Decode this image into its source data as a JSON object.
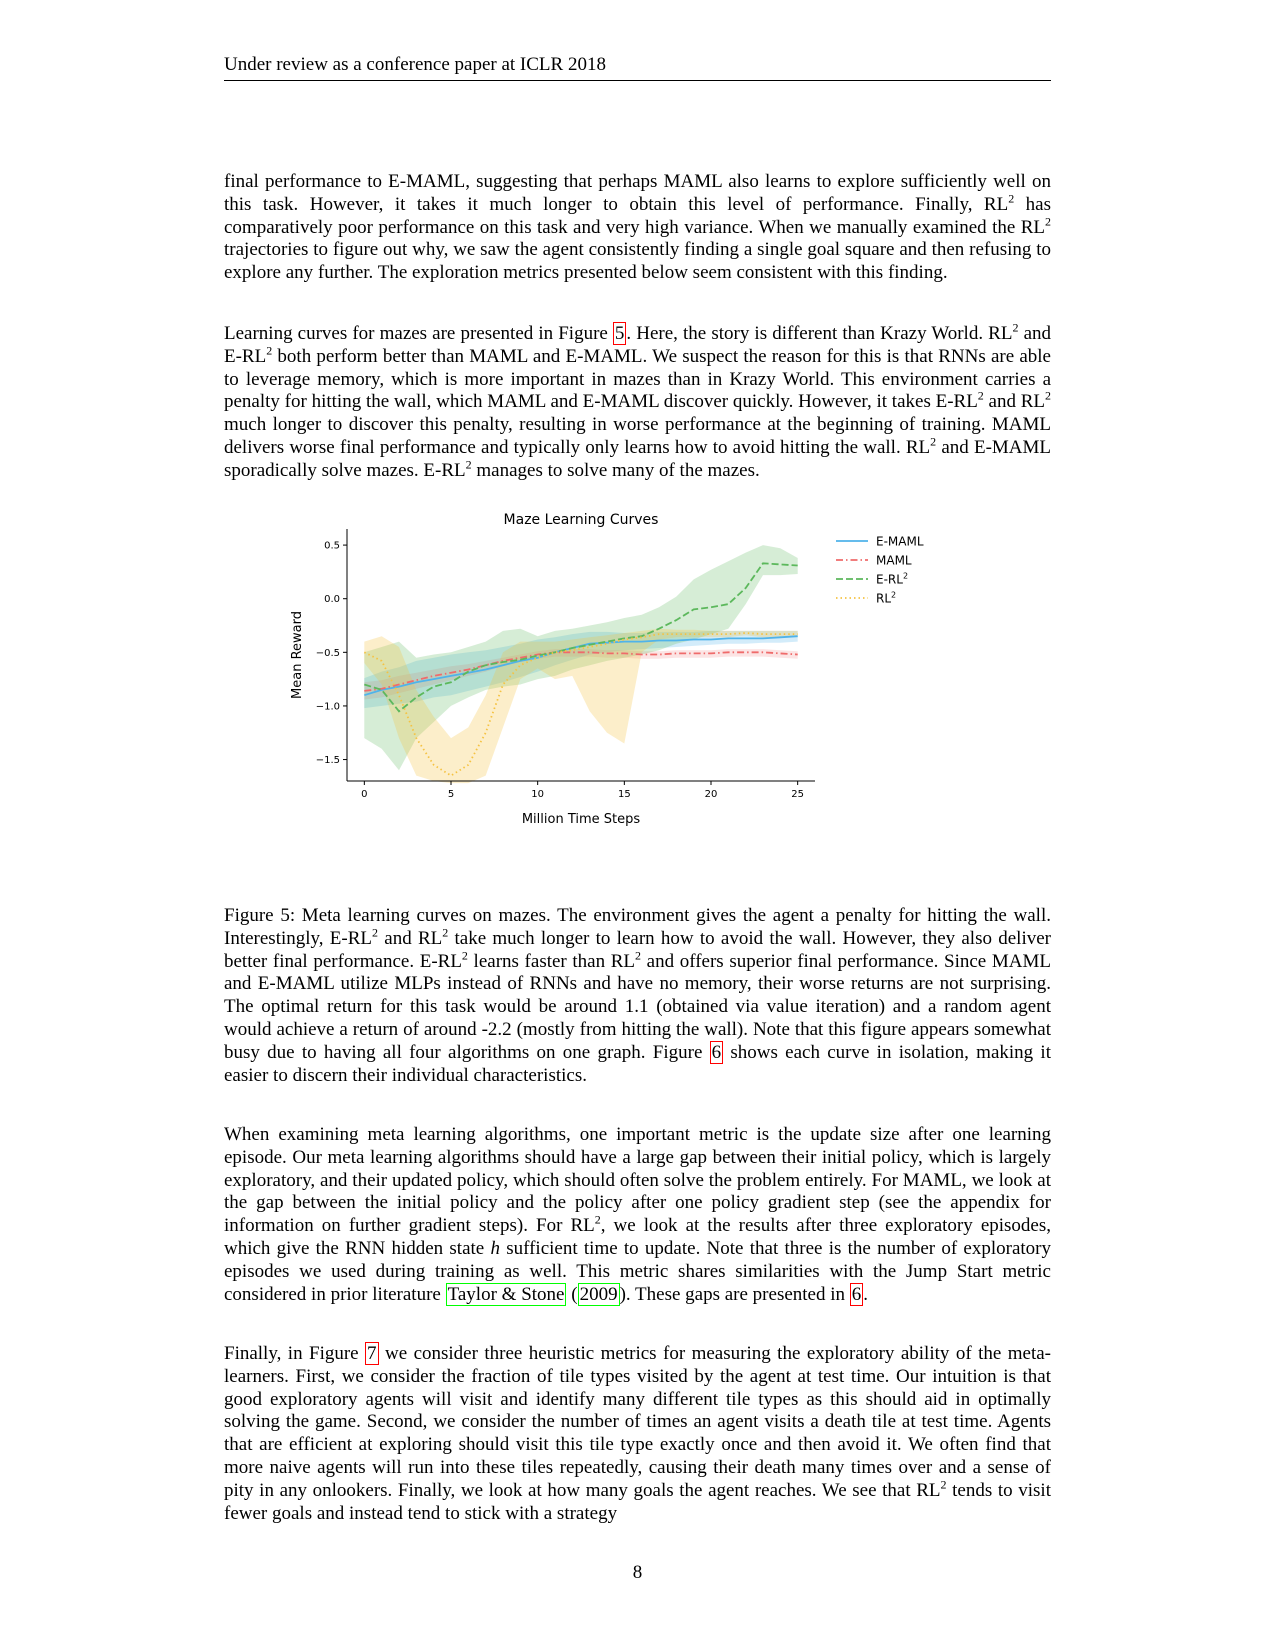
{
  "header": {
    "text": "Under review as a conference paper at ICLR 2018"
  },
  "paragraphs": {
    "p1": [
      {
        "t": "final performance to E-MAML, suggesting that perhaps MAML also learns to explore sufficiently well on this task. However, it takes it much longer to obtain this level of performance. Finally, RL"
      },
      {
        "t": "2",
        "sup": true
      },
      {
        "t": " has comparatively poor performance on this task and very high variance. When we manually examined the RL"
      },
      {
        "t": "2",
        "sup": true
      },
      {
        "t": " trajectories to figure out why, we saw the agent consistently finding a single goal square and then refusing to explore any further. The exploration metrics presented below seem consistent with this finding."
      }
    ],
    "p2": [
      {
        "t": "Learning curves for mazes are presented in Figure "
      },
      {
        "t": "5",
        "ref": "red"
      },
      {
        "t": ". Here, the story is different than Krazy World. RL"
      },
      {
        "t": "2",
        "sup": true
      },
      {
        "t": " and E-RL"
      },
      {
        "t": "2",
        "sup": true
      },
      {
        "t": " both perform better than MAML and E-MAML. We suspect the reason for this is that RNNs are able to leverage memory, which is more important in mazes than in Krazy World. This environment carries a penalty for hitting the wall, which MAML and E-MAML discover quickly. However, it takes E-RL"
      },
      {
        "t": "2",
        "sup": true
      },
      {
        "t": " and RL"
      },
      {
        "t": "2",
        "sup": true
      },
      {
        "t": " much longer to discover this penalty, resulting in worse performance at the beginning of training. MAML delivers worse final performance and typically only learns how to avoid hitting the wall. RL"
      },
      {
        "t": "2",
        "sup": true
      },
      {
        "t": " and E-MAML sporadically solve mazes. E-RL"
      },
      {
        "t": "2",
        "sup": true
      },
      {
        "t": " manages to solve many of the mazes."
      }
    ],
    "caption": [
      {
        "t": "Figure 5: Meta learning curves on mazes. The environment gives the agent a penalty for hitting the wall. Interestingly, E-RL"
      },
      {
        "t": "2",
        "sup": true
      },
      {
        "t": " and RL"
      },
      {
        "t": "2",
        "sup": true
      },
      {
        "t": " take much longer to learn how to avoid the wall. However, they also deliver better final performance. E-RL"
      },
      {
        "t": "2",
        "sup": true
      },
      {
        "t": " learns faster than RL"
      },
      {
        "t": "2",
        "sup": true
      },
      {
        "t": " and offers superior final performance. Since MAML and E-MAML utilize MLPs instead of RNNs and have no memory, their worse returns are not surprising. The optimal return for this task would be around 1.1 (obtained via value iteration) and a random agent would achieve a return of around -2.2 (mostly from hitting the wall). Note that this figure appears somewhat busy due to having all four algorithms on one graph. Figure "
      },
      {
        "t": "6",
        "ref": "red"
      },
      {
        "t": " shows each curve in isolation, making it easier to discern their individual characteristics."
      }
    ],
    "p3": [
      {
        "t": "When examining meta learning algorithms, one important metric is the update size after one learning episode. Our meta learning algorithms should have a large gap between their initial policy, which is largely exploratory, and their updated policy, which should often solve the problem entirely. For MAML, we look at the gap between the initial policy and the policy after one policy gradient step (see the appendix for information on further gradient steps). For RL"
      },
      {
        "t": "2",
        "sup": true
      },
      {
        "t": ", we look at the results after three exploratory episodes, which give the RNN hidden state "
      },
      {
        "t": "h",
        "italic": true
      },
      {
        "t": " sufficient time to update. Note that three is the number of exploratory episodes we used during training as well. This metric shares similarities with the Jump Start metric considered in prior literature "
      },
      {
        "t": "Taylor & Stone",
        "ref": "green"
      },
      {
        "t": " ("
      },
      {
        "t": "2009",
        "ref": "green"
      },
      {
        "t": "). These gaps are presented in "
      },
      {
        "t": "6",
        "ref": "red"
      },
      {
        "t": "."
      }
    ],
    "p4": [
      {
        "t": "Finally, in Figure "
      },
      {
        "t": "7",
        "ref": "red"
      },
      {
        "t": " we consider three heuristic metrics for measuring the exploratory ability of the meta-learners. First, we consider the fraction of tile types visited by the agent at test time. Our intuition is that good exploratory agents will visit and identify many different tile types as this should aid in optimally solving the game. Second, we consider the number of times an agent visits a death tile at test time. Agents that are efficient at exploring should visit this tile type exactly once and then avoid it. We often find that more naive agents will run into these tiles repeatedly, causing their death many times over and a sense of pity in any onlookers. Finally, we look at how many goals the agent reaches. We see that RL"
      },
      {
        "t": "2",
        "sup": true
      },
      {
        "t": " tends to visit fewer goals and instead tend to stick with a strategy"
      }
    ]
  },
  "page_number": "8",
  "chart_data": {
    "type": "line",
    "title": "Maze Learning Curves",
    "xlabel": "Million Time Steps",
    "ylabel": "Mean Reward",
    "xlim": [
      -1,
      26
    ],
    "ylim": [
      -1.7,
      0.65
    ],
    "xticks": [
      0,
      5,
      10,
      15,
      20,
      25
    ],
    "yticks": [
      0.5,
      0.0,
      -0.5,
      -1.0,
      -1.5
    ],
    "ytick_labels": [
      "0.5",
      "0.0",
      "−0.5",
      "−1.0",
      "−1.5"
    ],
    "legend_position": "right",
    "series": [
      {
        "name": "E-MAML",
        "legend_label": "E-MAML",
        "color": "#4fb3ea",
        "dash": "solid",
        "band_opacity": 0.25,
        "x": [
          0,
          1,
          2,
          3,
          4,
          5,
          6,
          7,
          8,
          9,
          10,
          11,
          12,
          13,
          14,
          15,
          16,
          17,
          18,
          19,
          20,
          21,
          22,
          23,
          24,
          25
        ],
        "y": [
          -0.9,
          -0.85,
          -0.82,
          -0.78,
          -0.75,
          -0.72,
          -0.69,
          -0.66,
          -0.62,
          -0.58,
          -0.55,
          -0.5,
          -0.46,
          -0.42,
          -0.41,
          -0.4,
          -0.4,
          -0.39,
          -0.39,
          -0.38,
          -0.38,
          -0.37,
          -0.37,
          -0.37,
          -0.36,
          -0.35
        ],
        "upper": [
          -0.74,
          -0.68,
          -0.64,
          -0.58,
          -0.55,
          -0.52,
          -0.5,
          -0.48,
          -0.45,
          -0.42,
          -0.38,
          -0.36,
          -0.33,
          -0.31,
          -0.31,
          -0.32,
          -0.32,
          -0.31,
          -0.31,
          -0.31,
          -0.3,
          -0.3,
          -0.3,
          -0.3,
          -0.3,
          -0.3
        ],
        "lower": [
          -1.02,
          -1.0,
          -0.98,
          -0.96,
          -0.92,
          -0.9,
          -0.86,
          -0.82,
          -0.78,
          -0.73,
          -0.68,
          -0.62,
          -0.57,
          -0.52,
          -0.5,
          -0.48,
          -0.47,
          -0.46,
          -0.45,
          -0.44,
          -0.43,
          -0.42,
          -0.42,
          -0.41,
          -0.41,
          -0.4
        ]
      },
      {
        "name": "MAML",
        "legend_label": "MAML",
        "color": "#ef6b6b",
        "dash": "dashdot",
        "band_opacity": 0.18,
        "x": [
          0,
          1,
          2,
          3,
          4,
          5,
          6,
          7,
          8,
          9,
          10,
          11,
          12,
          13,
          14,
          15,
          16,
          17,
          18,
          19,
          20,
          21,
          22,
          23,
          24,
          25
        ],
        "y": [
          -0.86,
          -0.84,
          -0.8,
          -0.76,
          -0.72,
          -0.69,
          -0.66,
          -0.62,
          -0.58,
          -0.55,
          -0.52,
          -0.5,
          -0.5,
          -0.5,
          -0.51,
          -0.51,
          -0.52,
          -0.52,
          -0.51,
          -0.51,
          -0.51,
          -0.5,
          -0.5,
          -0.5,
          -0.51,
          -0.52
        ],
        "upper": [
          -0.78,
          -0.76,
          -0.72,
          -0.69,
          -0.66,
          -0.63,
          -0.61,
          -0.58,
          -0.55,
          -0.52,
          -0.49,
          -0.47,
          -0.47,
          -0.47,
          -0.48,
          -0.48,
          -0.49,
          -0.49,
          -0.48,
          -0.48,
          -0.48,
          -0.47,
          -0.47,
          -0.47,
          -0.48,
          -0.49
        ],
        "lower": [
          -0.94,
          -0.92,
          -0.88,
          -0.84,
          -0.8,
          -0.76,
          -0.72,
          -0.68,
          -0.63,
          -0.59,
          -0.56,
          -0.54,
          -0.54,
          -0.54,
          -0.55,
          -0.55,
          -0.56,
          -0.56,
          -0.55,
          -0.55,
          -0.55,
          -0.54,
          -0.54,
          -0.54,
          -0.55,
          -0.56
        ]
      },
      {
        "name": "E-RL2",
        "legend_label": "E-RL",
        "legend_sup": "2",
        "color": "#5cb85c",
        "dash": "dashed",
        "band_opacity": 0.25,
        "x": [
          0,
          1,
          2,
          3,
          4,
          5,
          6,
          7,
          8,
          9,
          10,
          11,
          12,
          13,
          14,
          15,
          16,
          17,
          18,
          19,
          20,
          21,
          22,
          23,
          24,
          25
        ],
        "y": [
          -0.8,
          -0.85,
          -1.05,
          -0.92,
          -0.82,
          -0.78,
          -0.68,
          -0.62,
          -0.59,
          -0.57,
          -0.53,
          -0.5,
          -0.46,
          -0.43,
          -0.4,
          -0.37,
          -0.35,
          -0.28,
          -0.2,
          -0.1,
          -0.08,
          -0.05,
          0.1,
          0.33,
          0.32,
          0.31
        ],
        "upper": [
          -0.5,
          -0.45,
          -0.4,
          -0.55,
          -0.52,
          -0.5,
          -0.45,
          -0.4,
          -0.3,
          -0.28,
          -0.35,
          -0.3,
          -0.28,
          -0.25,
          -0.22,
          -0.18,
          -0.15,
          -0.08,
          0.02,
          0.18,
          0.27,
          0.35,
          0.43,
          0.5,
          0.47,
          0.38
        ],
        "lower": [
          -1.3,
          -1.4,
          -1.6,
          -1.3,
          -1.15,
          -1.0,
          -0.92,
          -0.85,
          -0.82,
          -0.8,
          -0.75,
          -0.72,
          -0.66,
          -0.62,
          -0.58,
          -0.55,
          -0.52,
          -0.48,
          -0.42,
          -0.38,
          -0.33,
          -0.28,
          -0.05,
          0.22,
          0.22,
          0.23
        ]
      },
      {
        "name": "RL2",
        "legend_label": "RL",
        "legend_sup": "2",
        "color": "#f5c242",
        "dash": "dotted",
        "band_opacity": 0.28,
        "x": [
          0,
          1,
          2,
          3,
          4,
          5,
          6,
          7,
          8,
          9,
          10,
          11,
          12,
          13,
          14,
          15,
          16,
          17,
          18,
          19,
          20,
          21,
          22,
          23,
          24,
          25
        ],
        "y": [
          -0.5,
          -0.58,
          -0.9,
          -1.3,
          -1.55,
          -1.65,
          -1.55,
          -1.25,
          -0.8,
          -0.62,
          -0.55,
          -0.5,
          -0.48,
          -0.45,
          -0.42,
          -0.38,
          -0.36,
          -0.33,
          -0.33,
          -0.33,
          -0.33,
          -0.33,
          -0.32,
          -0.33,
          -0.33,
          -0.33
        ],
        "upper": [
          -0.4,
          -0.35,
          -0.45,
          -0.85,
          -1.1,
          -1.3,
          -1.2,
          -0.9,
          -0.5,
          -0.4,
          -0.4,
          -0.4,
          -0.38,
          -0.36,
          -0.34,
          -0.32,
          -0.3,
          -0.28,
          -0.29,
          -0.29,
          -0.3,
          -0.3,
          -0.3,
          -0.3,
          -0.3,
          -0.3
        ],
        "lower": [
          -0.6,
          -0.8,
          -1.3,
          -1.65,
          -1.7,
          -1.72,
          -1.72,
          -1.65,
          -1.2,
          -0.75,
          -0.65,
          -0.75,
          -0.72,
          -1.05,
          -1.25,
          -1.35,
          -0.5,
          -0.38,
          -0.36,
          -0.36,
          -0.36,
          -0.36,
          -0.34,
          -0.36,
          -0.36,
          -0.36
        ]
      }
    ]
  }
}
